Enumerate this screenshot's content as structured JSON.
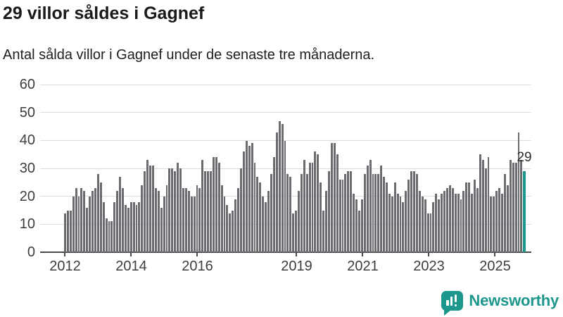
{
  "chart_data": {
    "type": "bar",
    "title": "29 villor såldes i Gagnef",
    "subtitle": "Antal sålda villor i Gagnef under de senaste tre månaderna.",
    "xlabel": "",
    "ylabel": "",
    "ylim": [
      0,
      60
    ],
    "yticks": [
      0,
      10,
      20,
      30,
      40,
      50,
      60
    ],
    "grid": true,
    "legend": "none",
    "bar_color": "#6b6c70",
    "highlight_color": "#1d978c",
    "xticks": [
      {
        "label": "2012",
        "index": 0
      },
      {
        "label": "2014",
        "index": 24
      },
      {
        "label": "2016",
        "index": 48
      },
      {
        "label": "2019",
        "index": 84
      },
      {
        "label": "2021",
        "index": 108
      },
      {
        "label": "2023",
        "index": 132
      },
      {
        "label": "2025",
        "index": 156
      }
    ],
    "values": [
      14,
      15,
      15,
      20,
      23,
      20,
      23,
      22,
      16,
      20,
      22,
      23,
      28,
      25,
      18,
      12,
      11,
      11,
      18,
      22,
      27,
      23,
      17,
      16,
      18,
      18,
      17,
      18,
      24,
      29,
      33,
      31,
      31,
      23,
      22,
      16,
      20,
      24,
      30,
      30,
      29,
      32,
      30,
      23,
      23,
      22,
      20,
      20,
      24,
      23,
      33,
      29,
      29,
      29,
      34,
      34,
      32,
      24,
      20,
      17,
      14,
      15,
      19,
      23,
      30,
      36,
      40,
      38,
      39,
      32,
      27,
      25,
      20,
      18,
      22,
      28,
      34,
      43,
      47,
      46,
      40,
      28,
      27,
      14,
      15,
      22,
      28,
      33,
      28,
      32,
      32,
      36,
      35,
      25,
      15,
      22,
      29,
      39,
      39,
      35,
      26,
      26,
      28,
      29,
      29,
      21,
      19,
      15,
      19,
      28,
      31,
      33,
      28,
      28,
      28,
      31,
      27,
      25,
      21,
      20,
      25,
      21,
      20,
      18,
      22,
      26,
      29,
      29,
      28,
      22,
      20,
      19,
      14,
      14,
      18,
      21,
      19,
      21,
      22,
      23,
      24,
      23,
      21,
      21,
      19,
      22,
      25,
      25,
      21,
      26,
      23,
      35,
      33,
      30,
      34,
      20,
      20,
      22,
      23,
      21,
      28,
      24,
      33,
      32,
      32,
      43,
      33,
      29
    ],
    "highlight_index": 167,
    "annotation": {
      "text": "29"
    }
  },
  "footer": {
    "brand": "Newsworthy"
  }
}
